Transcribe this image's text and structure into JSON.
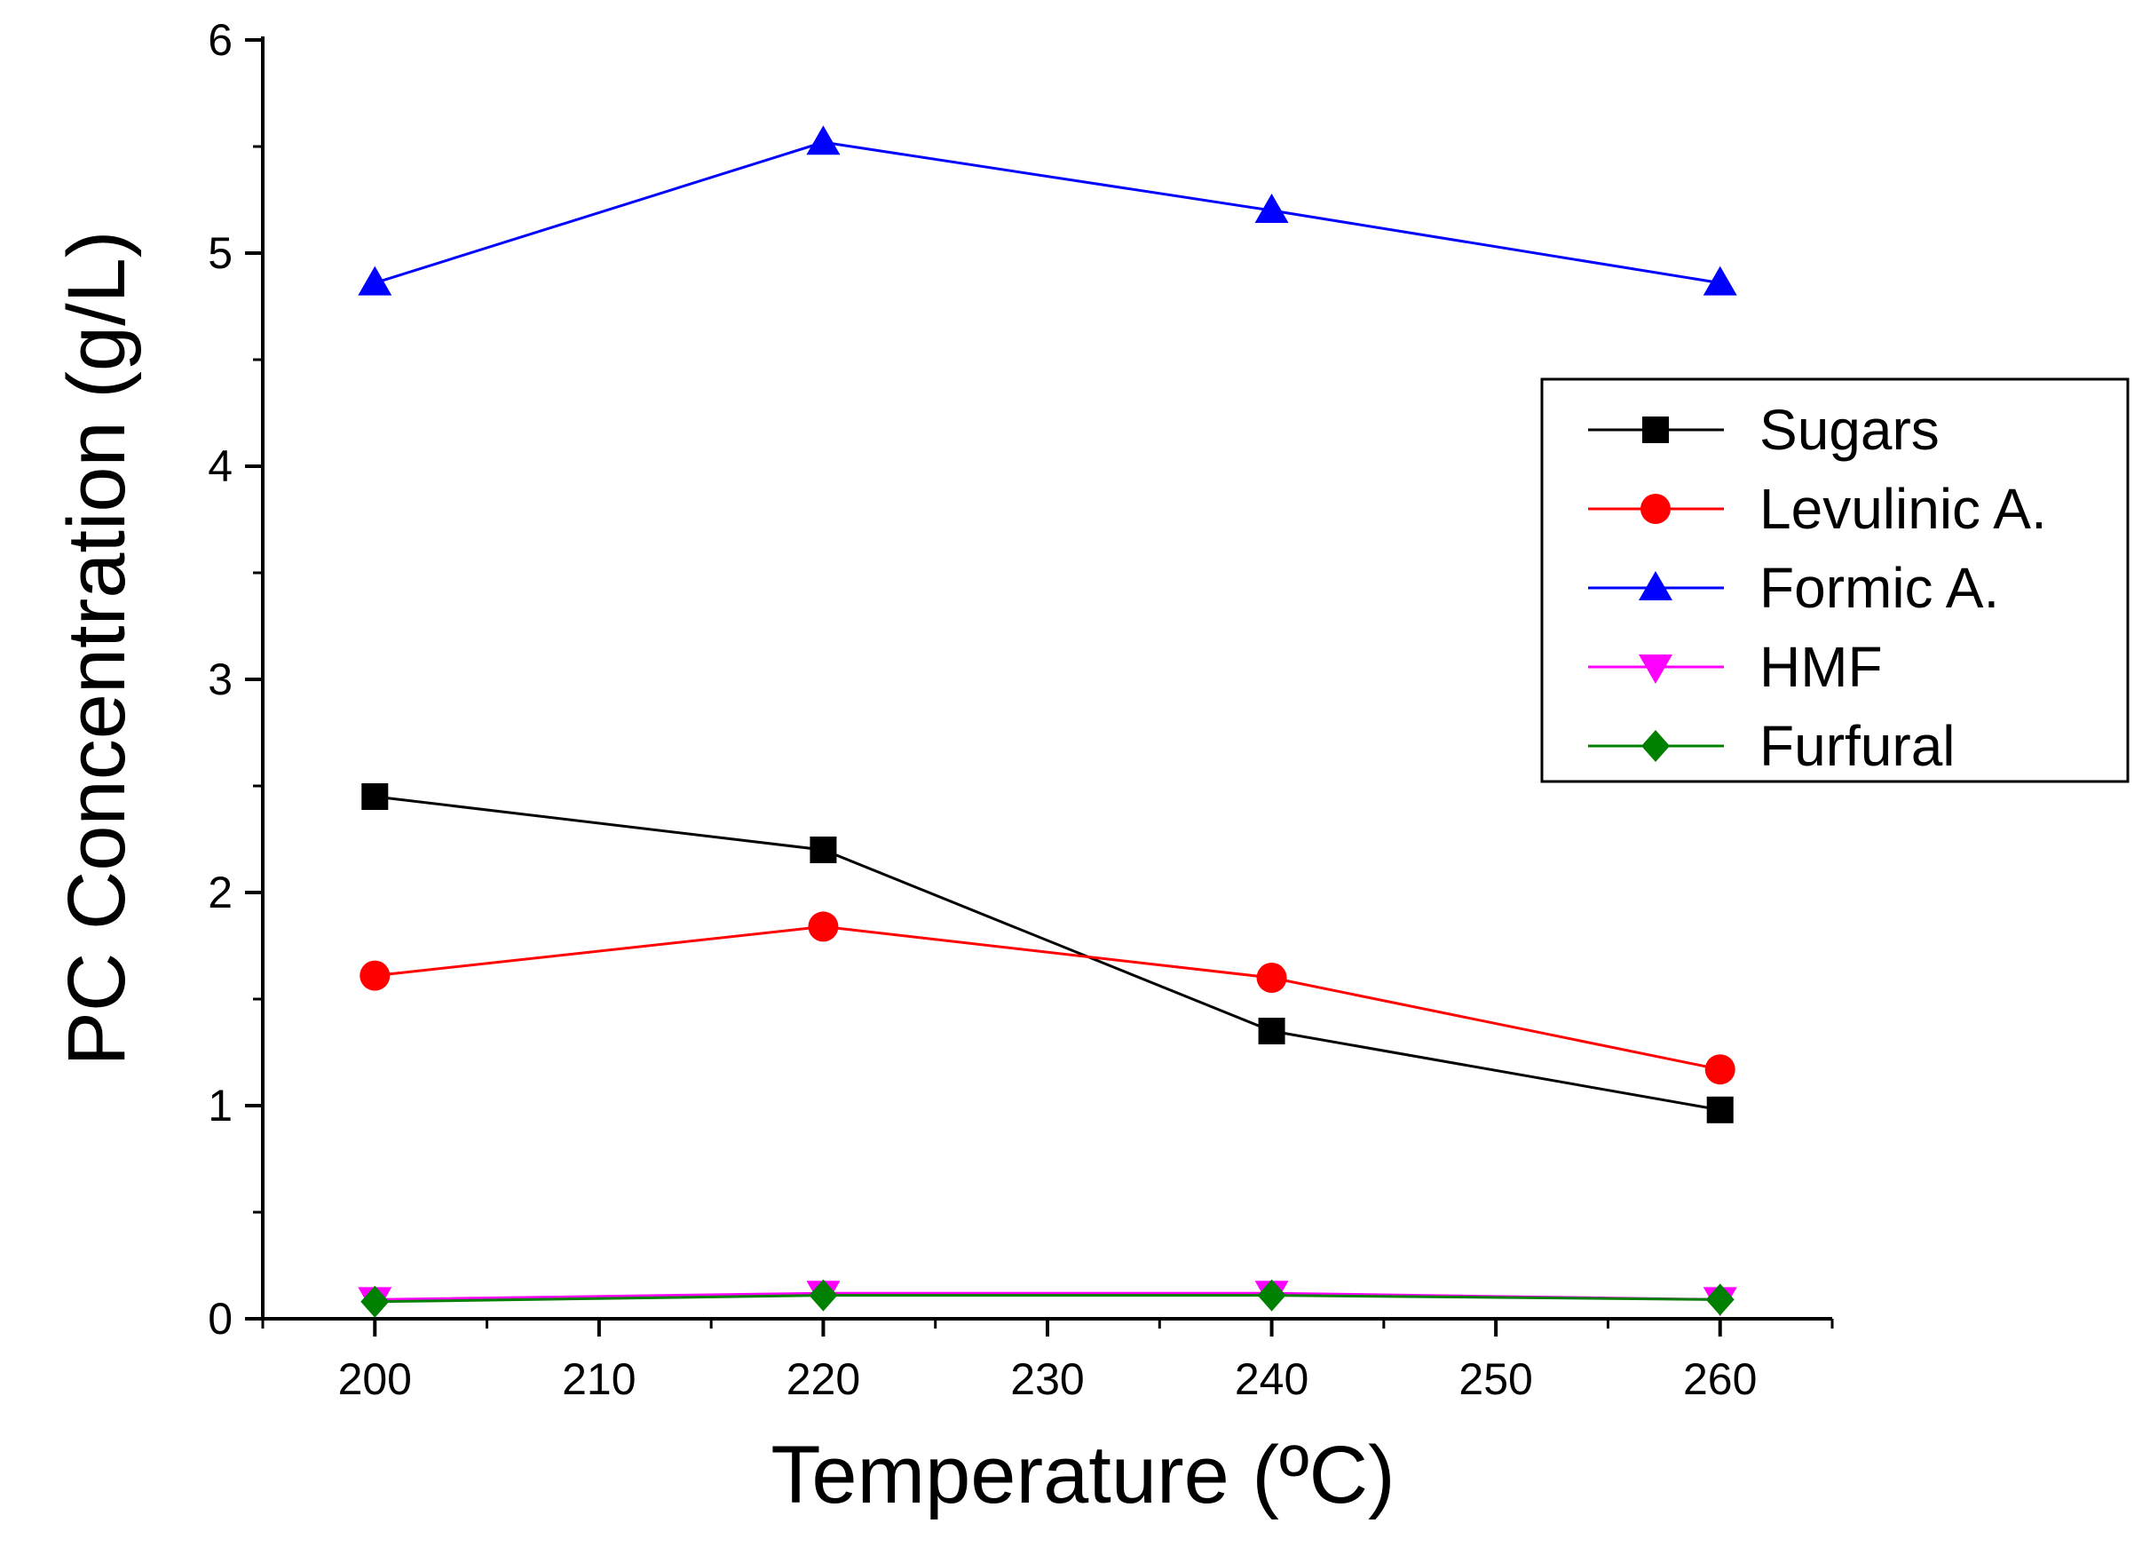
{
  "chart_data": {
    "type": "line",
    "title": "",
    "xlabel": "Temperature (ºC)",
    "ylabel": "PC Concentration (g/L)",
    "xlim": [
      195,
      265
    ],
    "ylim": [
      0,
      6
    ],
    "x_ticks": [
      "200",
      "210",
      "220",
      "230",
      "240",
      "250",
      "260"
    ],
    "y_ticks": [
      "0",
      "1",
      "2",
      "3",
      "4",
      "5",
      "6"
    ],
    "x": [
      200,
      220,
      240,
      260
    ],
    "grid": false,
    "legend_position": "right",
    "series": [
      {
        "name": "Sugars",
        "color": "#000000",
        "marker": "square",
        "values": [
          2.45,
          2.2,
          1.35,
          0.98
        ]
      },
      {
        "name": "Levulinic A.",
        "color": "#ff0000",
        "marker": "circle",
        "values": [
          1.61,
          1.84,
          1.6,
          1.17
        ]
      },
      {
        "name": "Formic A.",
        "color": "#0000ff",
        "marker": "triangle-up",
        "values": [
          4.86,
          5.52,
          5.2,
          4.86
        ]
      },
      {
        "name": "HMF",
        "color": "#ff00ff",
        "marker": "triangle-down",
        "values": [
          0.09,
          0.12,
          0.12,
          0.09
        ]
      },
      {
        "name": "Furfural",
        "color": "#008000",
        "marker": "diamond",
        "values": [
          0.08,
          0.11,
          0.11,
          0.09
        ]
      }
    ]
  }
}
